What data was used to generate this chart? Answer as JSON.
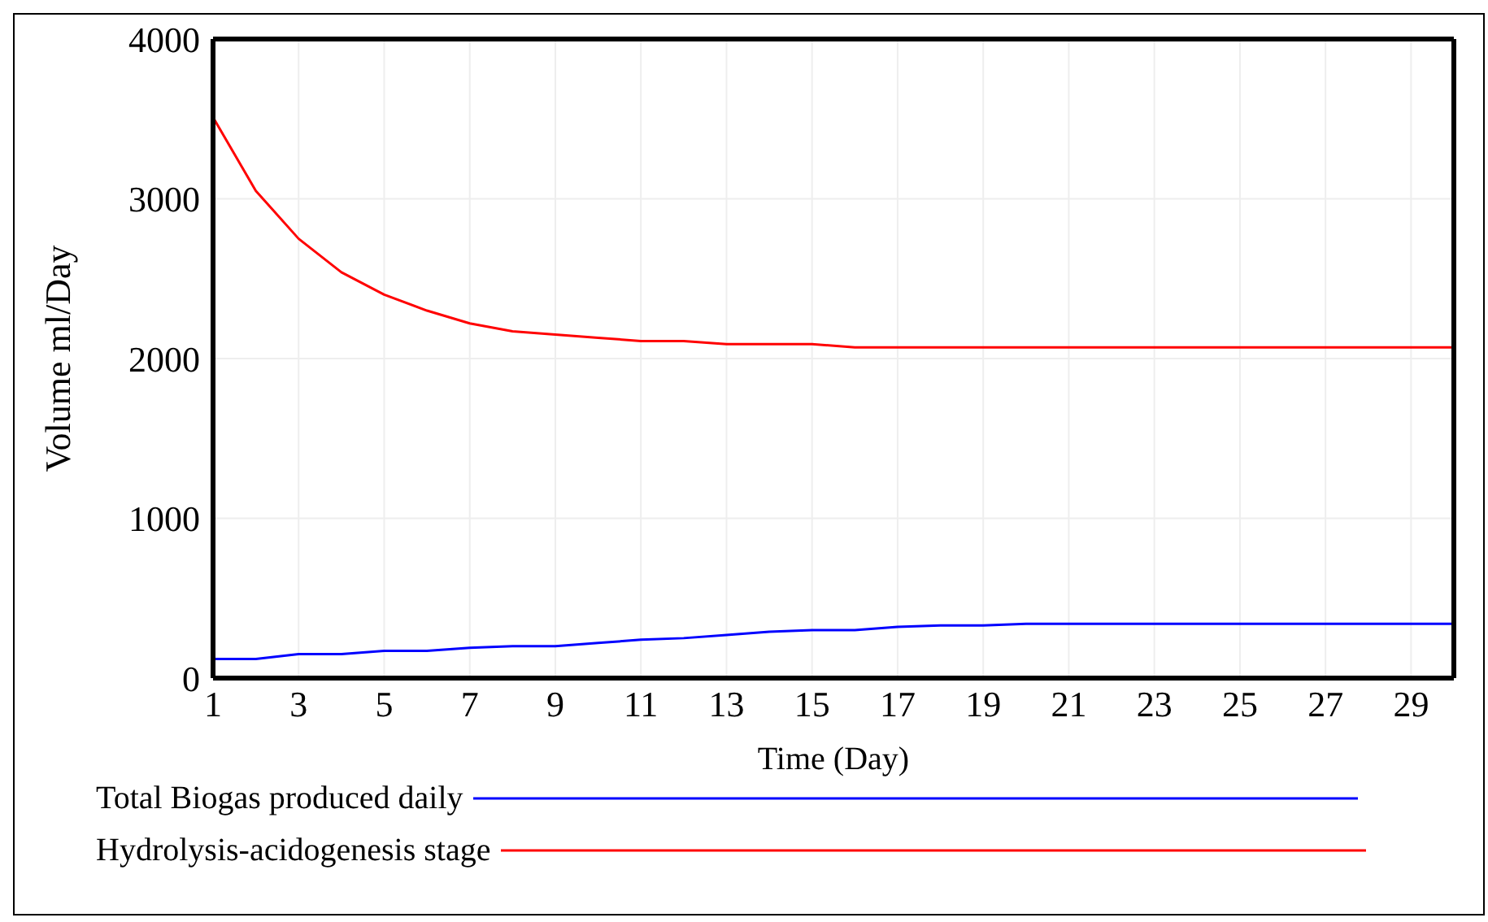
{
  "chart_data": {
    "type": "line",
    "xlabel": "Time (Day)",
    "ylabel": "Volume ml/Day",
    "x": [
      1,
      2,
      3,
      4,
      5,
      6,
      7,
      8,
      9,
      10,
      11,
      12,
      13,
      14,
      15,
      16,
      17,
      18,
      19,
      20,
      21,
      22,
      23,
      24,
      25,
      26,
      27,
      28,
      29,
      30
    ],
    "series": [
      {
        "name": "Total Biogas produced daily",
        "color": "#0000ff",
        "values": [
          120,
          120,
          150,
          150,
          170,
          170,
          190,
          200,
          200,
          220,
          240,
          250,
          270,
          290,
          300,
          300,
          320,
          330,
          330,
          340,
          340,
          340,
          340,
          340,
          340,
          340,
          340,
          340,
          340,
          340
        ]
      },
      {
        "name": "Hydrolysis-acidogenesis stage",
        "color": "#ff0000",
        "values": [
          3510,
          3050,
          2750,
          2540,
          2400,
          2300,
          2220,
          2170,
          2150,
          2130,
          2110,
          2110,
          2090,
          2090,
          2090,
          2070,
          2070,
          2070,
          2070,
          2070,
          2070,
          2070,
          2070,
          2070,
          2070,
          2070,
          2070,
          2070,
          2070,
          2070
        ]
      }
    ],
    "xlim": [
      1,
      30
    ],
    "xticks": [
      1,
      3,
      5,
      7,
      9,
      11,
      13,
      15,
      17,
      19,
      21,
      23,
      25,
      27,
      29
    ],
    "ylim": [
      0,
      4000
    ],
    "yticks": [
      0,
      1000,
      2000,
      3000,
      4000
    ],
    "grid": true,
    "legend": "bottom",
    "marker": "none",
    "line_style": "solid"
  }
}
